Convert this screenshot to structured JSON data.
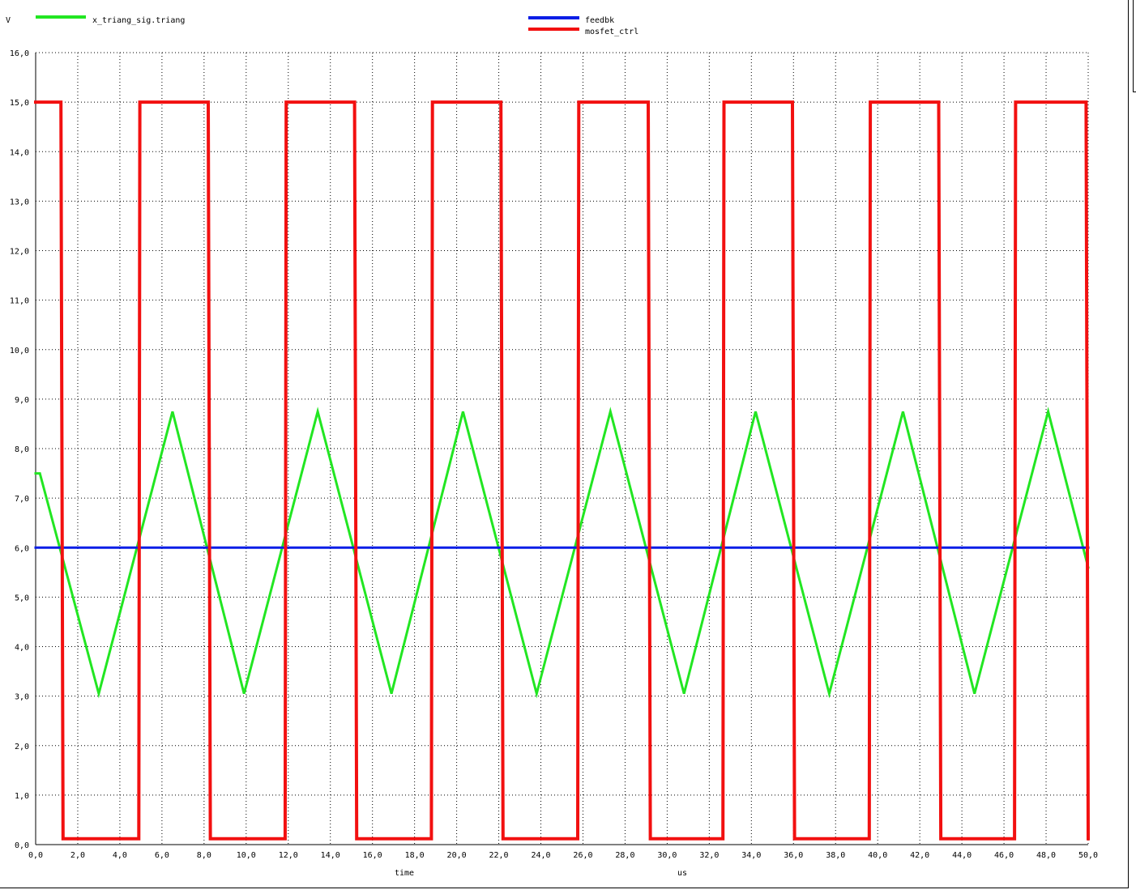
{
  "chart_data": {
    "type": "line",
    "title": "",
    "ylabel": "V",
    "xlabel": "time",
    "xunit": "us",
    "xlim": [
      0,
      50
    ],
    "ylim": [
      0,
      16
    ],
    "xticks": [
      "0,0",
      "2,0",
      "4,0",
      "6,0",
      "8,0",
      "10,0",
      "12,0",
      "14,0",
      "16,0",
      "18,0",
      "20,0",
      "22,0",
      "24,0",
      "26,0",
      "28,0",
      "30,0",
      "32,0",
      "34,0",
      "36,0",
      "38,0",
      "40,0",
      "42,0",
      "44,0",
      "46,0",
      "48,0",
      "50,0"
    ],
    "yticks": [
      "0,0",
      "1,0",
      "2,0",
      "3,0",
      "4,0",
      "5,0",
      "6,0",
      "7,0",
      "8,0",
      "9,0",
      "10,0",
      "11,0",
      "12,0",
      "13,0",
      "14,0",
      "15,0",
      "16,0"
    ],
    "grid": true,
    "legend": [
      "top-left",
      "top-center"
    ],
    "series": [
      {
        "name": "x_triang_sig.triang",
        "color": "#22e622",
        "x": [
          0,
          0.2,
          3.0,
          6.5,
          9.9,
          13.4,
          16.9,
          20.3,
          23.8,
          27.3,
          30.8,
          34.2,
          37.7,
          41.2,
          44.6,
          48.1,
          50.0
        ],
        "y": [
          7.5,
          7.5,
          3.05,
          8.75,
          3.05,
          8.75,
          3.05,
          8.75,
          3.05,
          8.75,
          3.05,
          8.75,
          3.05,
          8.75,
          3.05,
          8.75,
          5.6
        ]
      },
      {
        "name": "feedbk",
        "color": "#0a1ee6",
        "x": [
          0,
          50
        ],
        "y": [
          6.0,
          6.0
        ]
      },
      {
        "name": "mosfet_ctrl",
        "color": "#f21010",
        "x": [
          0,
          1.2,
          1.3,
          4.9,
          4.95,
          8.2,
          8.3,
          11.85,
          11.9,
          15.15,
          15.25,
          18.8,
          18.85,
          22.1,
          22.2,
          25.75,
          25.8,
          29.1,
          29.2,
          32.65,
          32.7,
          35.95,
          36.05,
          39.6,
          39.65,
          42.9,
          43.0,
          46.5,
          46.55,
          49.9,
          50.0
        ],
        "y": [
          15.0,
          15.0,
          0.12,
          0.12,
          15.0,
          15.0,
          0.12,
          0.12,
          15.0,
          15.0,
          0.12,
          0.12,
          15.0,
          15.0,
          0.12,
          0.12,
          15.0,
          15.0,
          0.12,
          0.12,
          15.0,
          15.0,
          0.12,
          0.12,
          15.0,
          15.0,
          0.12,
          0.12,
          15.0,
          15.0,
          0.12
        ]
      }
    ]
  }
}
